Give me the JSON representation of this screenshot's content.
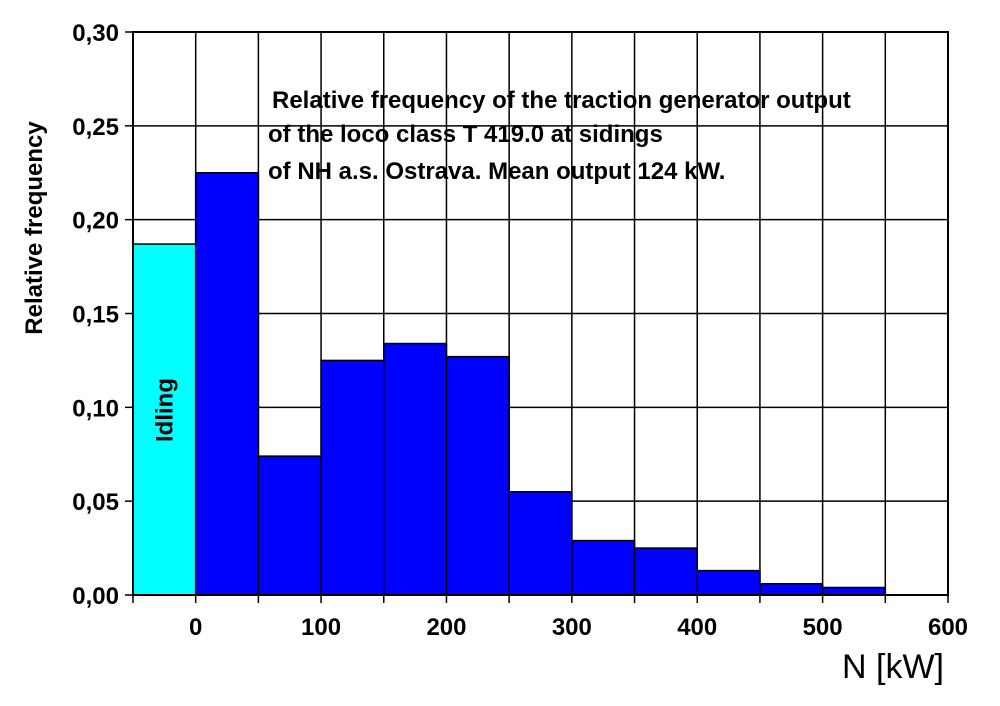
{
  "chart_data": {
    "type": "bar",
    "ylabel": "Relative frequency",
    "xlabel": "N [kW]",
    "annotation": [
      "Relative frequency of the traction generator output",
      "of the loco class T 419.0 at sidings",
      "of NH a.s. Ostrava.  Mean output 124 kW."
    ],
    "idle_label": "Idling",
    "xlim": [
      -50,
      600
    ],
    "ylim": [
      0,
      0.3
    ],
    "grid": true,
    "x_ticks": [
      0,
      100,
      200,
      300,
      400,
      500,
      600
    ],
    "x_tick_labels": [
      "0",
      "100",
      "200",
      "300",
      "400",
      "500",
      "600"
    ],
    "y_ticks": [
      0,
      0.05,
      0.1,
      0.15,
      0.2,
      0.25,
      0.3
    ],
    "y_tick_labels": [
      "0,00",
      "0,05",
      "0,10",
      "0,15",
      "0,20",
      "0,25",
      "0,30"
    ],
    "bins": [
      {
        "x0": -50,
        "x1": 0,
        "value": 0.187,
        "color": "#00ffff",
        "kind": "idling"
      },
      {
        "x0": 0,
        "x1": 50,
        "value": 0.225,
        "color": "#0000ff"
      },
      {
        "x0": 50,
        "x1": 100,
        "value": 0.074,
        "color": "#0000ff"
      },
      {
        "x0": 100,
        "x1": 150,
        "value": 0.125,
        "color": "#0000ff"
      },
      {
        "x0": 150,
        "x1": 200,
        "value": 0.134,
        "color": "#0000ff"
      },
      {
        "x0": 200,
        "x1": 250,
        "value": 0.127,
        "color": "#0000ff"
      },
      {
        "x0": 250,
        "x1": 300,
        "value": 0.055,
        "color": "#0000ff"
      },
      {
        "x0": 300,
        "x1": 350,
        "value": 0.029,
        "color": "#0000ff"
      },
      {
        "x0": 350,
        "x1": 400,
        "value": 0.025,
        "color": "#0000ff"
      },
      {
        "x0": 400,
        "x1": 450,
        "value": 0.013,
        "color": "#0000ff"
      },
      {
        "x0": 450,
        "x1": 500,
        "value": 0.006,
        "color": "#0000ff"
      },
      {
        "x0": 500,
        "x1": 550,
        "value": 0.004,
        "color": "#0000ff"
      }
    ]
  }
}
